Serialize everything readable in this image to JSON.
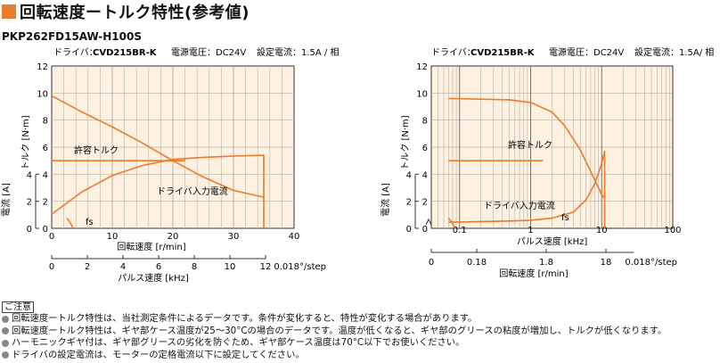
{
  "title": "回転速度ートルク特性(参考値)",
  "model": "PKP262FD15AW-H100S",
  "colors": {
    "accent": "#ee7a2b",
    "curve": "#ee7a2b",
    "plot_bg": "#fdf1e2",
    "grid": "#b9b1a8"
  },
  "chart_data": [
    {
      "type": "line",
      "header": [
        "ドライバ：",
        "CVD215BR-K",
        "電源電圧：DC24V",
        "設定電流：1.5A / 相"
      ],
      "xlabel": "回転速度 [r/min]",
      "x2label": "パルス速度 [kHz]",
      "x2ticks": [
        "0",
        "2",
        "4",
        "6",
        "8",
        "10",
        "12"
      ],
      "x2unit": "0.018°/step",
      "ylabel": "トルク [N·m]",
      "y2label": "電流 [A]",
      "xlim": [
        0,
        40
      ],
      "ylim": [
        0,
        12
      ],
      "y2lim": [
        0,
        4
      ],
      "xticks": [
        0,
        10,
        20,
        30,
        40
      ],
      "yticks": [
        0,
        2,
        4,
        6,
        8,
        10,
        12
      ],
      "y2ticks": [
        0,
        2,
        4
      ],
      "series": [
        {
          "name": "許容トルク",
          "x": [
            0,
            22
          ],
          "y": [
            5,
            5
          ]
        },
        {
          "name": "",
          "x": [
            0,
            5,
            10,
            15,
            20,
            25,
            30,
            35
          ],
          "y": [
            9.8,
            8.6,
            7.5,
            6.3,
            5.0,
            3.8,
            2.8,
            2.3
          ]
        },
        {
          "name": "ドライバ入力電流",
          "x": [
            0,
            5,
            10,
            15,
            20,
            25,
            30,
            35,
            35
          ],
          "y": [
            0.35,
            0.9,
            1.3,
            1.55,
            1.7,
            1.75,
            1.78,
            1.8,
            0
          ]
        },
        {
          "name": "fs",
          "x": [
            2.5,
            2.6
          ],
          "y": [
            0.4,
            0
          ]
        }
      ]
    },
    {
      "type": "line",
      "scale": "log",
      "header": [
        "ドライバ：",
        "CVD215BR-K",
        "電源電圧：DC24V",
        "設定電流：1.5A/ 相"
      ],
      "xlabel": "パルス速度 [kHz]",
      "x2label": "回転速度 [r/min]",
      "x2ticks": [
        "0",
        "0.18",
        "1.8",
        "18"
      ],
      "x2unit": "0.018°/step",
      "xticks": [
        "0.1",
        "1",
        "10",
        "100"
      ],
      "ylabel": "トルク [N·m]",
      "y2label": "電流 [A]",
      "xlim": [
        0.04,
        100
      ],
      "ylim": [
        0,
        12
      ],
      "y2lim": [
        0,
        4
      ],
      "yticks": [
        0,
        2,
        4,
        6,
        8,
        10,
        12
      ],
      "y2ticks": [
        0,
        2,
        4
      ],
      "series": [
        {
          "name": "許容トルク",
          "x": [
            0.07,
            1.5
          ],
          "y": [
            5,
            5
          ]
        },
        {
          "name": "",
          "x": [
            0.07,
            0.5,
            1,
            2,
            3,
            5,
            7,
            9,
            10,
            11
          ],
          "y": [
            9.6,
            9.5,
            9.3,
            8.6,
            7.6,
            5.8,
            4.2,
            3.0,
            2.5,
            2.2
          ]
        },
        {
          "name": "ドライバ入力電流",
          "x": [
            0.07,
            0.5,
            1,
            2,
            4,
            6,
            8,
            10,
            11,
            11
          ],
          "y": [
            0.15,
            0.18,
            0.2,
            0.25,
            0.4,
            0.7,
            1.1,
            1.6,
            1.9,
            0
          ]
        },
        {
          "name": "fs",
          "x": [
            0.06
          ],
          "y": [
            0
          ]
        }
      ]
    }
  ],
  "notes_title": "ご注意",
  "notes": [
    "回転速度ートルク特性は、当社測定条件によるデータです。条件が変化すると、特性が変化する場合があります。",
    "回転速度ートルク特性は、ギヤ部ケース温度が25～30°Cの場合のデータです。温度が低くなると、ギヤ部のグリースの粘度が増加し、トルクが低くなります。",
    "ハーモニックギヤ付は、ギヤ部グリースの劣化を防ぐため、ギヤ部ケース温度は70°C以下でお使いください。",
    "ドライバの設定電流は、モーターの定格電流以下に設定してください。"
  ]
}
